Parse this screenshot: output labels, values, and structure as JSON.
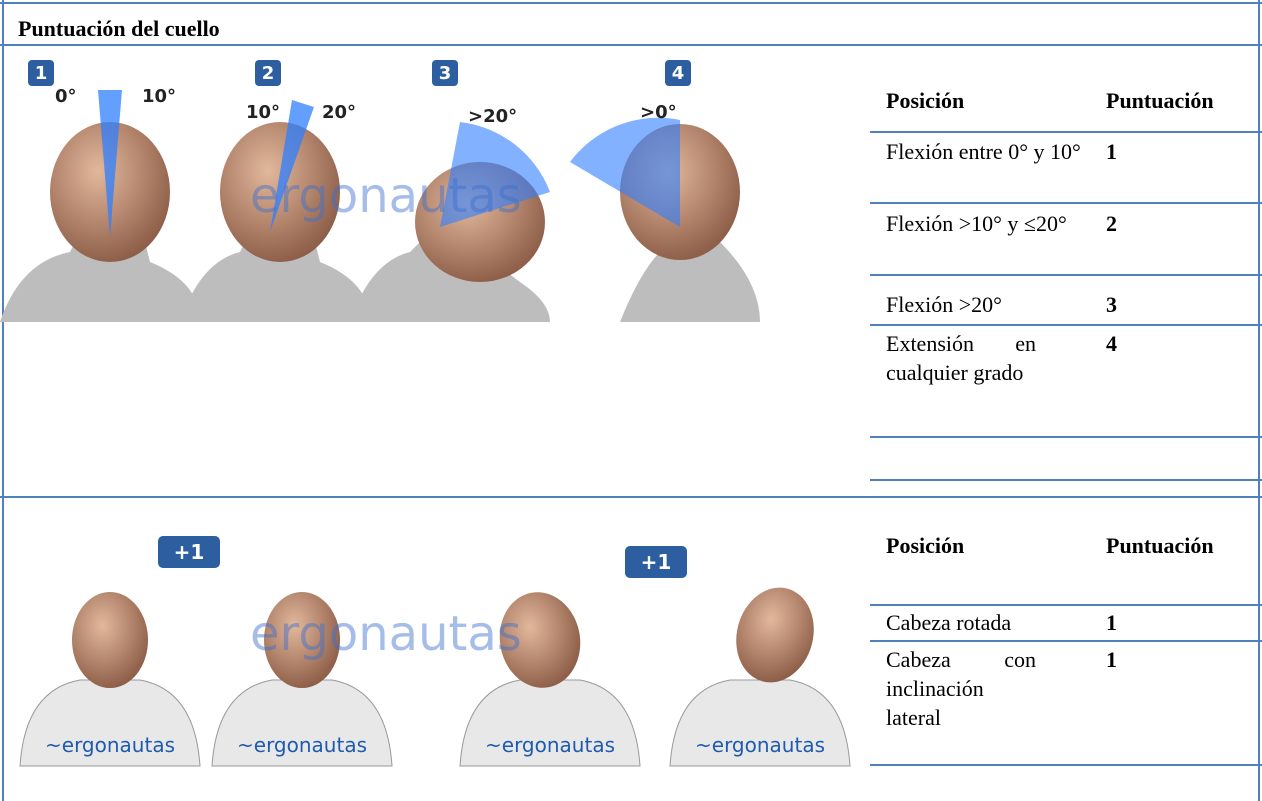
{
  "header": {
    "title": "Puntuación del cuello"
  },
  "sections": [
    {
      "figures": [
        {
          "badge": "1",
          "angles": [
            "0°",
            "10°"
          ]
        },
        {
          "badge": "2",
          "angles": [
            "10°",
            "20°"
          ]
        },
        {
          "badge": "3",
          "angles": [
            ">20°"
          ]
        },
        {
          "badge": "4",
          "angles": [
            ">0°"
          ]
        }
      ],
      "watermark": "ergonautas",
      "table": {
        "columns": [
          "Posición",
          "Puntuación"
        ],
        "rows": [
          [
            "Flexión entre 0° y 10°",
            "1"
          ],
          [
            "Flexión >10° y ≤20°",
            "2"
          ],
          [
            "Flexión >20°",
            "3"
          ],
          [
            "Extensión en cualquier grado",
            "4"
          ]
        ]
      }
    },
    {
      "figures": [
        {
          "badge": "+1"
        },
        {
          "badge": "+1"
        }
      ],
      "watermark": "ergonautas",
      "shirt_logo": "~ergonautas",
      "table": {
        "columns": [
          "Posición",
          "Puntuación"
        ],
        "rows": [
          [
            "Cabeza rotada",
            "1"
          ],
          [
            "Cabeza con inclinación lateral",
            "1"
          ]
        ]
      }
    }
  ]
}
